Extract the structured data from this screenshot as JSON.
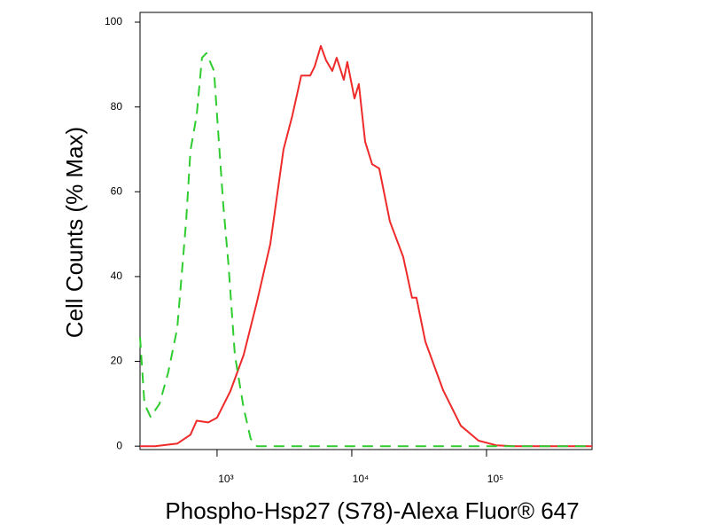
{
  "chart_data": {
    "type": "line",
    "x_label": "Phospho-Hsp27 (S78)-Alexa Fluor® 647",
    "y_label": "Cell Counts (% Max)",
    "x_scale": "log",
    "xlim": [
      268,
      607000
    ],
    "xticks": [
      {
        "value": 1000,
        "label": "10³"
      },
      {
        "value": 10000,
        "label": "10⁴"
      },
      {
        "value": 100000,
        "label": "10⁵"
      }
    ],
    "ylim": [
      -0.8,
      102.3
    ],
    "yticks": [
      0,
      20,
      40,
      60,
      80,
      100
    ],
    "series": [
      {
        "color": "#ee2a2a",
        "dashed": false,
        "x": [
          268,
          346,
          506,
          635,
          706,
          860,
          1000,
          1256,
          1575,
          1977,
          2483,
          3113,
          3622,
          4217,
          4909,
          5297,
          5891,
          6446,
          7166,
          7727,
          8725,
          9270,
          10470,
          11290,
          12560,
          14170,
          15990,
          19170,
          24080,
          28010,
          30200,
          35160,
          47640,
          64470,
          87310,
          118000,
          160000,
          607000
        ],
        "values": [
          0,
          0,
          0.6,
          2.7,
          6,
          5.6,
          6.7,
          13,
          21.5,
          34,
          47.7,
          70,
          78,
          87.4,
          87.4,
          89.5,
          94.4,
          91,
          88.5,
          91.6,
          86.4,
          90.6,
          82,
          85.4,
          71.8,
          66.5,
          65.5,
          53,
          44.6,
          35,
          35,
          24.7,
          13.2,
          4.8,
          1.3,
          0.2,
          0,
          0
        ]
      },
      {
        "color": "#2ecc2e",
        "dashed": true,
        "x": [
          268,
          289,
          321,
          374,
          434,
          506,
          589,
          635,
          706,
          773,
          834,
          950,
          1000,
          1112,
          1218,
          1355,
          1575,
          1778,
          1977,
          607000
        ],
        "values": [
          25.7,
          10,
          6.9,
          10,
          17.4,
          27.8,
          53,
          69.7,
          78,
          91.6,
          92.7,
          88.5,
          78,
          57,
          42.5,
          21.5,
          9,
          1.7,
          0,
          0
        ]
      }
    ]
  }
}
